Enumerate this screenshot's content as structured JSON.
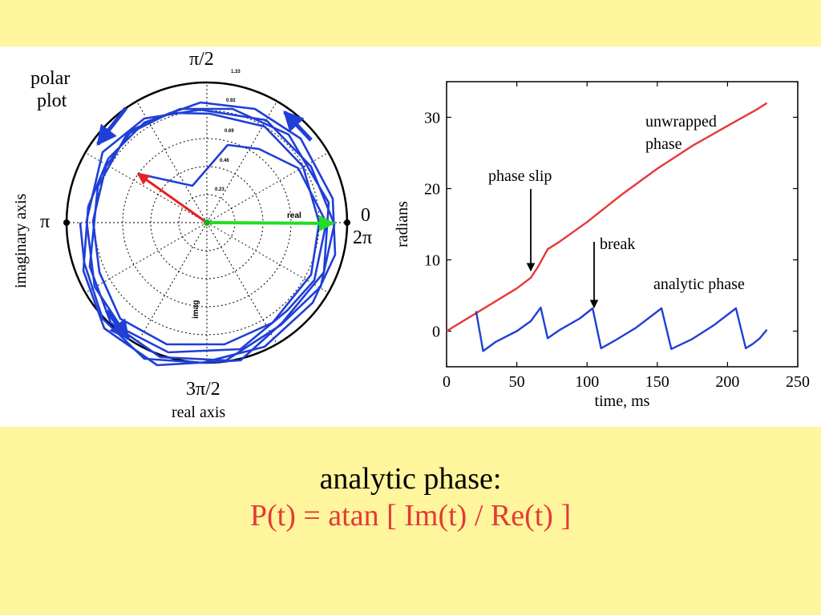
{
  "figure": {
    "polar_plot": {
      "label_line1": "polar",
      "label_line2": "plot",
      "angle_labels": {
        "top": "π/2",
        "left": "π",
        "right_top": "0",
        "right_bottom": "2π",
        "bottom": "3π/2"
      },
      "axis_label_left": "imaginary axis",
      "axis_label_bottom": "real axis",
      "radial_labels": [
        "1.33",
        "0.92",
        "0.69",
        "0.46",
        "0.23"
      ],
      "vector_labels": {
        "real": "real",
        "imag": "imag"
      },
      "colors": {
        "trace": "#1f3fd6",
        "real_vector": "#22dd22",
        "phase_vector": "#e82020"
      }
    }
  },
  "chart_data": [
    {
      "type": "line",
      "xlabel": "time, ms",
      "ylabel": "radians",
      "xlim": [
        0,
        250
      ],
      "ylim": [
        -5,
        35
      ],
      "x_ticks": [
        0,
        50,
        100,
        150,
        200,
        250
      ],
      "y_ticks": [
        0,
        10,
        20,
        30
      ],
      "series": [
        {
          "name": "unwrapped phase",
          "color": "#e53935",
          "x": [
            0,
            25,
            50,
            60,
            65,
            72,
            80,
            100,
            125,
            150,
            175,
            200,
            220,
            228
          ],
          "y": [
            0,
            3,
            6,
            7.5,
            9,
            11.5,
            12.5,
            15.3,
            19.2,
            22.8,
            26,
            28.8,
            31,
            32
          ]
        },
        {
          "name": "analytic phase",
          "color": "#1f3fd6",
          "x": [
            21,
            26,
            35,
            50,
            60,
            67,
            72,
            80,
            95,
            104,
            110,
            120,
            135,
            153,
            160,
            175,
            190,
            206,
            213,
            218,
            223,
            228
          ],
          "y": [
            2.8,
            -2.8,
            -1.5,
            0,
            1.4,
            3.3,
            -1,
            0.1,
            1.8,
            3.2,
            -2.4,
            -1.3,
            0.5,
            3.2,
            -2.5,
            -1.1,
            0.8,
            3.2,
            -2.4,
            -1.8,
            -1,
            0.2
          ]
        }
      ],
      "annotations": [
        {
          "text": "phase slip",
          "x": 60,
          "y": 7.5
        },
        {
          "text": "break",
          "x": 104,
          "y": 3.2
        },
        {
          "text": "unwrapped\nphase",
          "x": 205,
          "y": 30
        },
        {
          "text": "analytic phase",
          "x": 160,
          "y": 6
        }
      ],
      "annotation_lines": {
        "unwrapped_line1": "unwrapped",
        "unwrapped_line2": "phase",
        "analytic": "analytic phase",
        "phase_slip": "phase slip",
        "break": "break"
      }
    }
  ],
  "caption": {
    "title": "analytic phase:",
    "formula": "P(t) = atan [ Im(t) / Re(t) ]"
  }
}
